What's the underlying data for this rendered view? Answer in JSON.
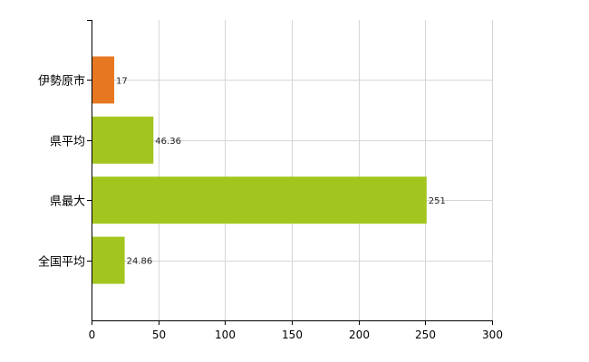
{
  "chart_data": {
    "type": "bar",
    "orientation": "horizontal",
    "title": "",
    "xlabel": "",
    "ylabel": "",
    "categories": [
      "伊勢原市",
      "県平均",
      "県最大",
      "全国平均"
    ],
    "values": [
      17,
      46.36,
      251,
      24.86
    ],
    "data_labels": [
      "17",
      "46.36",
      "251",
      "24.86"
    ],
    "xlim": [
      0,
      300
    ],
    "x_ticks": [
      0,
      50,
      100,
      150,
      200,
      250,
      300
    ],
    "grid": true,
    "legend": "none",
    "colors": {
      "highlight": "#e87722",
      "default": "#a3c61e",
      "grid": "#d6d6d6",
      "axis": "#000000"
    },
    "highlight_index": 0
  }
}
